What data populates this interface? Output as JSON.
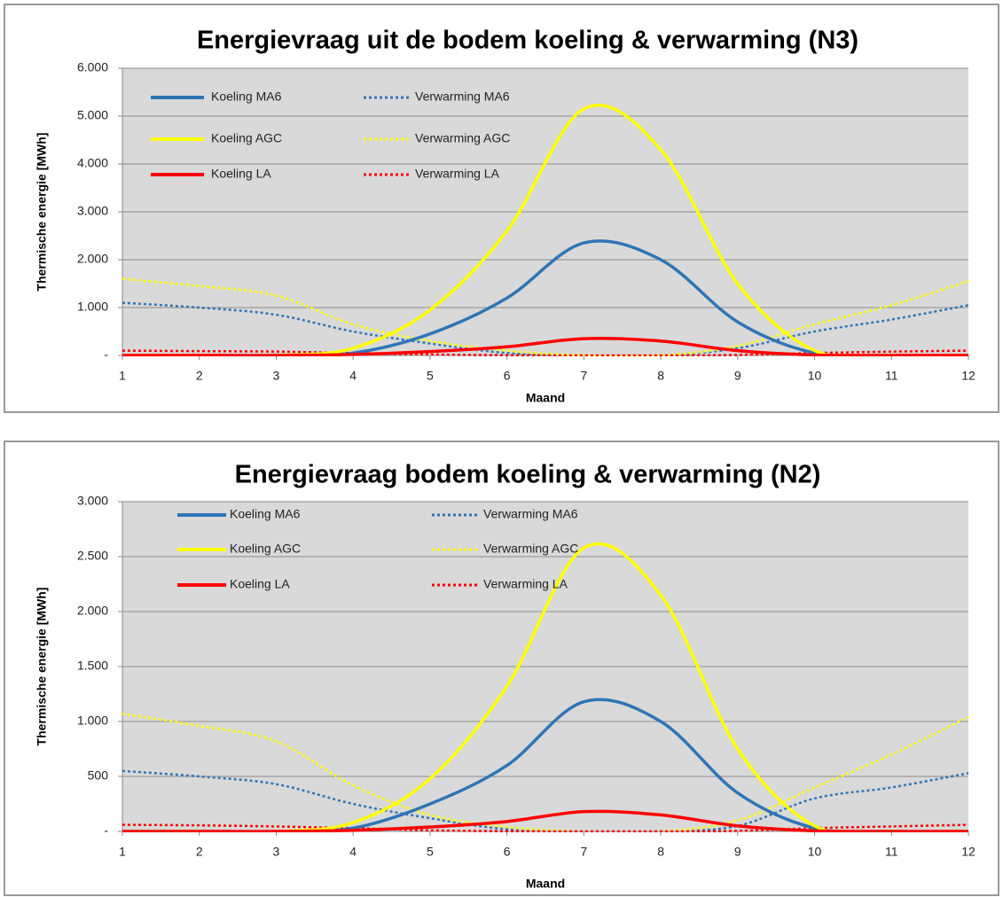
{
  "chart_data": [
    {
      "type": "line",
      "title": "Energievraag uit de bodem koeling & verwarming (N3)",
      "x_label": "Maand",
      "y_label": "Thermische energie [MWh]",
      "x": [
        1,
        2,
        3,
        4,
        5,
        6,
        7,
        8,
        9,
        10,
        11,
        12
      ],
      "xlim": [
        1,
        12
      ],
      "xticks": [
        1,
        2,
        3,
        4,
        5,
        6,
        7,
        8,
        9,
        10,
        11,
        12
      ],
      "ylim": [
        0,
        6000
      ],
      "yticks": [
        {
          "value": 0,
          "label": "-"
        },
        {
          "value": 1000,
          "label": "1.000"
        },
        {
          "value": 2000,
          "label": "2.000"
        },
        {
          "value": 3000,
          "label": "3.000"
        },
        {
          "value": 4000,
          "label": "4.000"
        },
        {
          "value": 5000,
          "label": "5.000"
        },
        {
          "value": 6000,
          "label": "6.000"
        }
      ],
      "grid": true,
      "smooth": true,
      "series": [
        {
          "name": "Koeling MA6",
          "color": "#2e75b6",
          "style": "solid",
          "values": [
            0,
            0,
            0,
            50,
            450,
            1200,
            2350,
            2000,
            700,
            50,
            0,
            0
          ]
        },
        {
          "name": "Verwarming MA6",
          "color": "#2e75b6",
          "style": "dotted",
          "values": [
            1100,
            1000,
            850,
            500,
            250,
            50,
            0,
            0,
            150,
            500,
            750,
            1050
          ]
        },
        {
          "name": "Koeling AGC",
          "color": "#ffff00",
          "style": "solid",
          "values": [
            0,
            0,
            0,
            150,
            950,
            2600,
            5150,
            4300,
            1500,
            100,
            0,
            0
          ]
        },
        {
          "name": "Verwarming AGC",
          "color": "#ffff00",
          "style": "dotted",
          "values": [
            1600,
            1450,
            1250,
            650,
            300,
            100,
            0,
            0,
            200,
            650,
            1050,
            1550
          ]
        },
        {
          "name": "Koeling LA",
          "color": "#ff0000",
          "style": "solid",
          "values": [
            0,
            0,
            0,
            20,
            80,
            180,
            350,
            300,
            100,
            10,
            0,
            0
          ]
        },
        {
          "name": "Verwarming LA",
          "color": "#ff0000",
          "style": "dotted",
          "values": [
            100,
            90,
            80,
            50,
            20,
            5,
            0,
            0,
            10,
            50,
            80,
            100
          ]
        }
      ]
    },
    {
      "type": "line",
      "title": "Energievraag bodem koeling & verwarming (N2)",
      "x_label": "Maand",
      "y_label": "Thermische energie [MWh]",
      "x": [
        1,
        2,
        3,
        4,
        5,
        6,
        7,
        8,
        9,
        10,
        11,
        12
      ],
      "xlim": [
        1,
        12
      ],
      "xticks": [
        1,
        2,
        3,
        4,
        5,
        6,
        7,
        8,
        9,
        10,
        11,
        12
      ],
      "ylim": [
        0,
        3000
      ],
      "yticks": [
        {
          "value": 0,
          "label": "-"
        },
        500,
        {
          "value": 1000,
          "label": "1.000"
        },
        {
          "value": 1500,
          "label": "1.500"
        },
        {
          "value": 2000,
          "label": "2.000"
        },
        {
          "value": 2500,
          "label": "2.500"
        },
        {
          "value": 3000,
          "label": "3.000"
        }
      ],
      "grid": true,
      "smooth": true,
      "series": [
        {
          "name": "Koeling MA6",
          "color": "#2e75b6",
          "style": "solid",
          "values": [
            0,
            0,
            0,
            30,
            250,
            600,
            1180,
            1000,
            350,
            30,
            0,
            0
          ]
        },
        {
          "name": "Verwarming MA6",
          "color": "#2e75b6",
          "style": "dotted",
          "values": [
            550,
            500,
            430,
            250,
            120,
            20,
            0,
            0,
            50,
            300,
            400,
            530
          ]
        },
        {
          "name": "Koeling AGC",
          "color": "#ffff00",
          "style": "solid",
          "values": [
            0,
            0,
            0,
            80,
            480,
            1320,
            2580,
            2150,
            750,
            50,
            0,
            0
          ]
        },
        {
          "name": "Verwarming AGC",
          "color": "#ffff00",
          "style": "dotted",
          "values": [
            1070,
            960,
            820,
            420,
            150,
            40,
            0,
            0,
            100,
            400,
            700,
            1040
          ]
        },
        {
          "name": "Koeling LA",
          "color": "#ff0000",
          "style": "solid",
          "values": [
            0,
            0,
            0,
            10,
            40,
            90,
            180,
            150,
            50,
            5,
            0,
            0
          ]
        },
        {
          "name": "Verwarming LA",
          "color": "#ff0000",
          "style": "dotted",
          "values": [
            60,
            55,
            45,
            30,
            10,
            2,
            0,
            0,
            5,
            30,
            45,
            60
          ]
        }
      ]
    }
  ]
}
